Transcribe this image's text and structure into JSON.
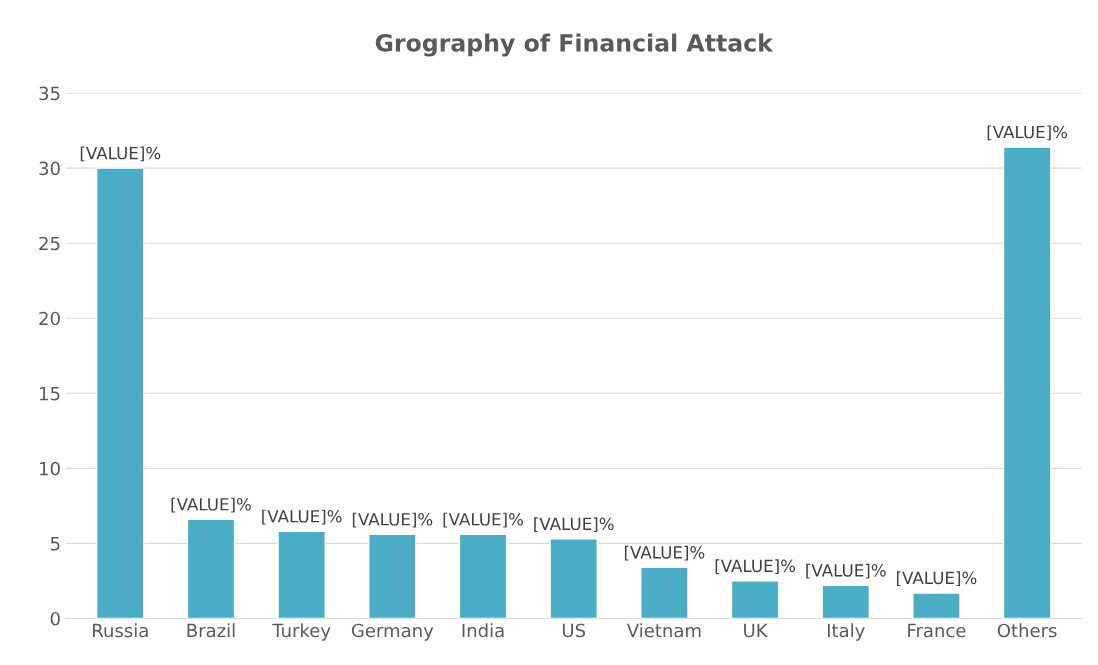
{
  "chart_data": {
    "type": "bar",
    "title": "Grography of Financial Attack",
    "categories": [
      "Russia",
      "Brazil",
      "Turkey",
      "Germany",
      "India",
      "US",
      "Vietnam",
      "UK",
      "Italy",
      "France",
      "Others"
    ],
    "values": [
      30,
      6.6,
      5.8,
      5.6,
      5.6,
      5.3,
      3.4,
      2.5,
      2.2,
      1.7,
      31.4
    ],
    "value_labels": [
      "[VALUE]%",
      "[VALUE]%",
      "[VALUE]%",
      "[VALUE]%",
      "[VALUE]%",
      "[VALUE]%",
      "[VALUE]%",
      "[VALUE]%",
      "[VALUE]%",
      "[VALUE]%",
      "[VALUE]%"
    ],
    "color": "#4bacc6",
    "ylim": [
      0,
      35
    ],
    "yticks": [
      0,
      5,
      10,
      15,
      20,
      25,
      30,
      35
    ],
    "grid": "y"
  }
}
